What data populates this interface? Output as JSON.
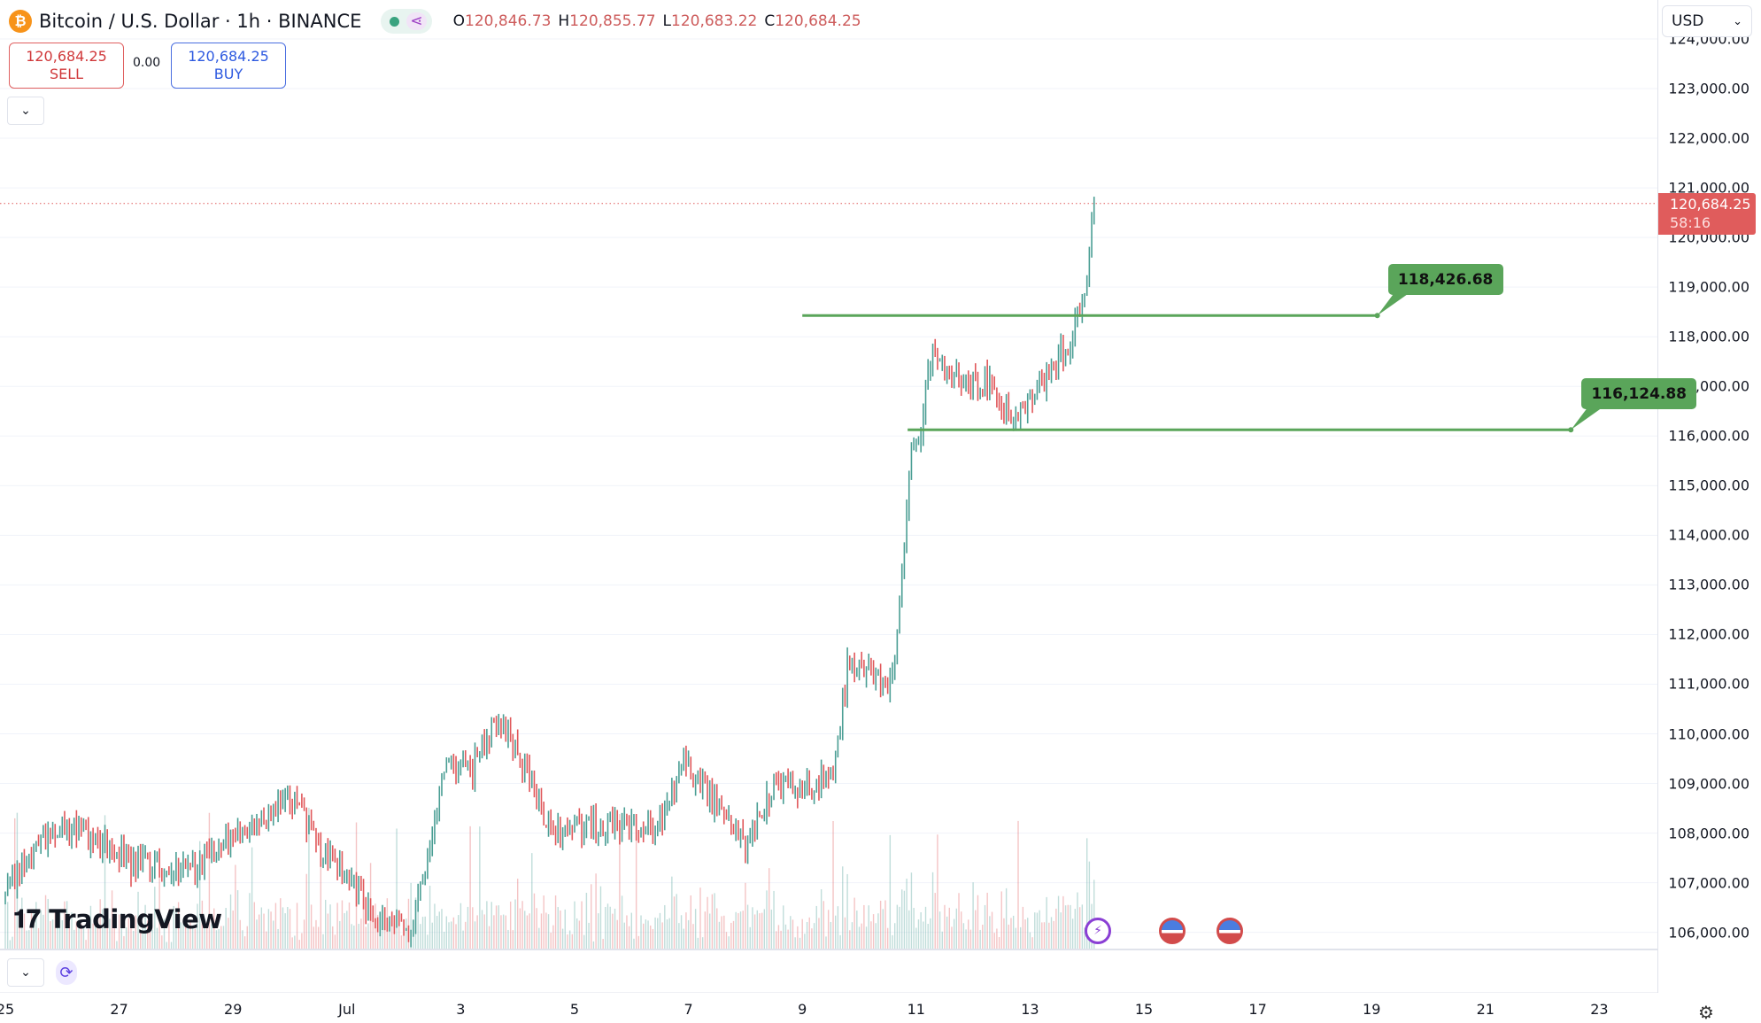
{
  "header": {
    "symbol_icon": "bitcoin-icon",
    "title": "Bitcoin / U.S. Dollar · 1h · BINANCE",
    "ohlc": [
      {
        "key": "O",
        "value": "120,846.73"
      },
      {
        "key": "H",
        "value": "120,855.77"
      },
      {
        "key": "L",
        "value": "120,683.22"
      },
      {
        "key": "C",
        "value": "120,684.25"
      }
    ]
  },
  "trade": {
    "sell_price": "120,684.25",
    "sell_label": "SELL",
    "spread": "0.00",
    "buy_price": "120,684.25",
    "buy_label": "BUY"
  },
  "currency": "USD",
  "last_price": {
    "value": "120,684.25",
    "countdown": "58:16",
    "price": 120684.25
  },
  "watermark": "TradingView",
  "colors": {
    "up": "#4a9e94",
    "down": "#e0575a",
    "line": "#5aa55a",
    "last": "#e05c5c"
  },
  "chart_data": {
    "type": "candlestick",
    "title": "Bitcoin / U.S. Dollar · 1h · BINANCE",
    "ylim": [
      105600,
      124000
    ],
    "y_ticks": [
      "124,000.00",
      "123,000.00",
      "122,000.00",
      "121,000.00",
      "120,000.00",
      "119,000.00",
      "118,000.00",
      "117,000.00",
      "116,000.00",
      "115,000.00",
      "114,000.00",
      "113,000.00",
      "112,000.00",
      "111,000.00",
      "110,000.00",
      "109,000.00",
      "108,000.00",
      "107,000.00",
      "106,000.00"
    ],
    "y_tick_values": [
      124000,
      123000,
      122000,
      121000,
      120000,
      119000,
      118000,
      117000,
      116000,
      115000,
      114000,
      113000,
      112000,
      111000,
      110000,
      109000,
      108000,
      107000,
      106000
    ],
    "x_ticks": [
      {
        "label": "25",
        "day": 0
      },
      {
        "label": "27",
        "day": 2
      },
      {
        "label": "29",
        "day": 4
      },
      {
        "label": "Jul",
        "day": 6
      },
      {
        "label": "3",
        "day": 8
      },
      {
        "label": "5",
        "day": 10
      },
      {
        "label": "7",
        "day": 12
      },
      {
        "label": "9",
        "day": 14
      },
      {
        "label": "11",
        "day": 16
      },
      {
        "label": "13",
        "day": 18
      },
      {
        "label": "15",
        "day": 20
      },
      {
        "label": "17",
        "day": 22
      },
      {
        "label": "19",
        "day": 24
      },
      {
        "label": "21",
        "day": 26
      },
      {
        "label": "23",
        "day": 28
      }
    ],
    "x_unit": "days since Jun 25",
    "price_path": [
      [
        0,
        106700
      ],
      [
        0.6,
        107900
      ],
      [
        1.2,
        108150
      ],
      [
        2.27,
        107350
      ],
      [
        3.35,
        107360
      ],
      [
        4.48,
        108380
      ],
      [
        5.03,
        108670
      ],
      [
        5.62,
        107600
      ],
      [
        6.6,
        106230
      ],
      [
        7.1,
        106000
      ],
      [
        7.5,
        108040
      ],
      [
        7.75,
        109620
      ],
      [
        8.18,
        109170
      ],
      [
        8.58,
        110300
      ],
      [
        8.97,
        109740
      ],
      [
        9.57,
        108040
      ],
      [
        10.16,
        108150
      ],
      [
        10.95,
        108150
      ],
      [
        11.44,
        108040
      ],
      [
        11.93,
        109400
      ],
      [
        12.52,
        108490
      ],
      [
        13.02,
        107700
      ],
      [
        13.5,
        108940
      ],
      [
        14.1,
        108830
      ],
      [
        14.6,
        109400
      ],
      [
        14.79,
        111430
      ],
      [
        15.09,
        111200
      ],
      [
        15.58,
        110980
      ],
      [
        15.68,
        112340
      ],
      [
        15.78,
        113700
      ],
      [
        15.9,
        115730
      ],
      [
        16.07,
        116190
      ],
      [
        16.27,
        117770
      ],
      [
        16.57,
        117320
      ],
      [
        16.86,
        116980
      ],
      [
        17.26,
        117090
      ],
      [
        17.65,
        116300
      ],
      [
        18.24,
        117090
      ],
      [
        18.64,
        117770
      ],
      [
        18.93,
        118680
      ],
      [
        19.13,
        120684
      ]
    ],
    "horizontal_lines": [
      {
        "label": "118,426.68",
        "price": 118426.68,
        "from_day": 14.0,
        "to_day": 24.1
      },
      {
        "label": "116,124.88",
        "price": 116124.88,
        "from_day": 15.85,
        "to_day": 27.5
      }
    ],
    "events": [
      "earnings-bolt-icon",
      "us-flag-icon",
      "us-flag-icon"
    ]
  }
}
